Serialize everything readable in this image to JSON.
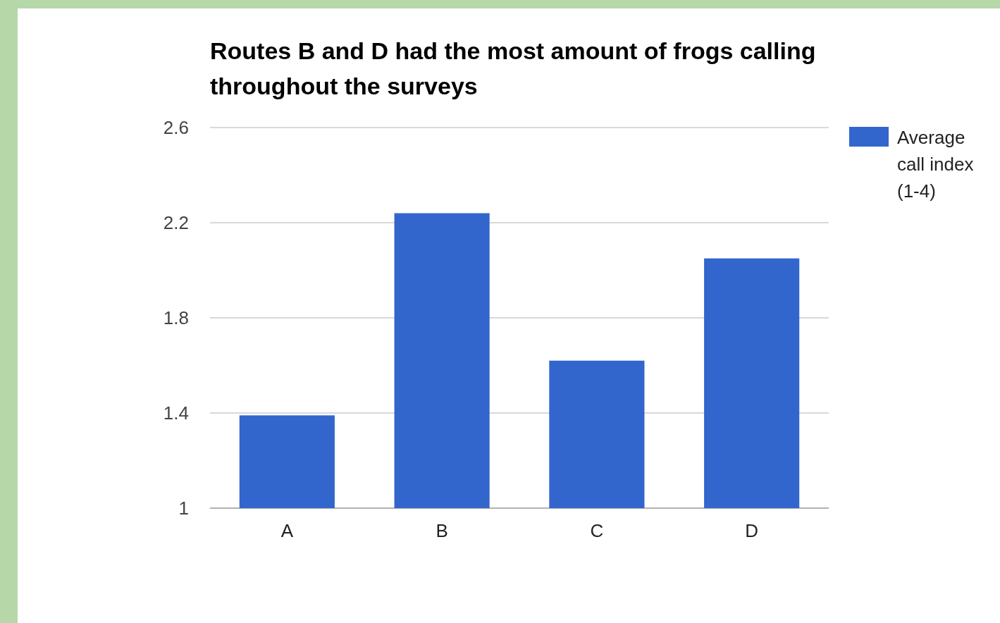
{
  "chart_data": {
    "type": "bar",
    "title": "Routes B and D had the most amount of frogs calling throughout the surveys",
    "categories": [
      "A",
      "B",
      "C",
      "D"
    ],
    "series": [
      {
        "name": "Average call index (1-4)",
        "color": "#3366cc",
        "values": [
          1.39,
          2.24,
          1.62,
          2.05
        ]
      }
    ],
    "ylim": [
      1,
      2.6
    ],
    "yticks": [
      1,
      1.4,
      1.8,
      2.2,
      2.6
    ],
    "grid": "y",
    "legend": "right"
  }
}
